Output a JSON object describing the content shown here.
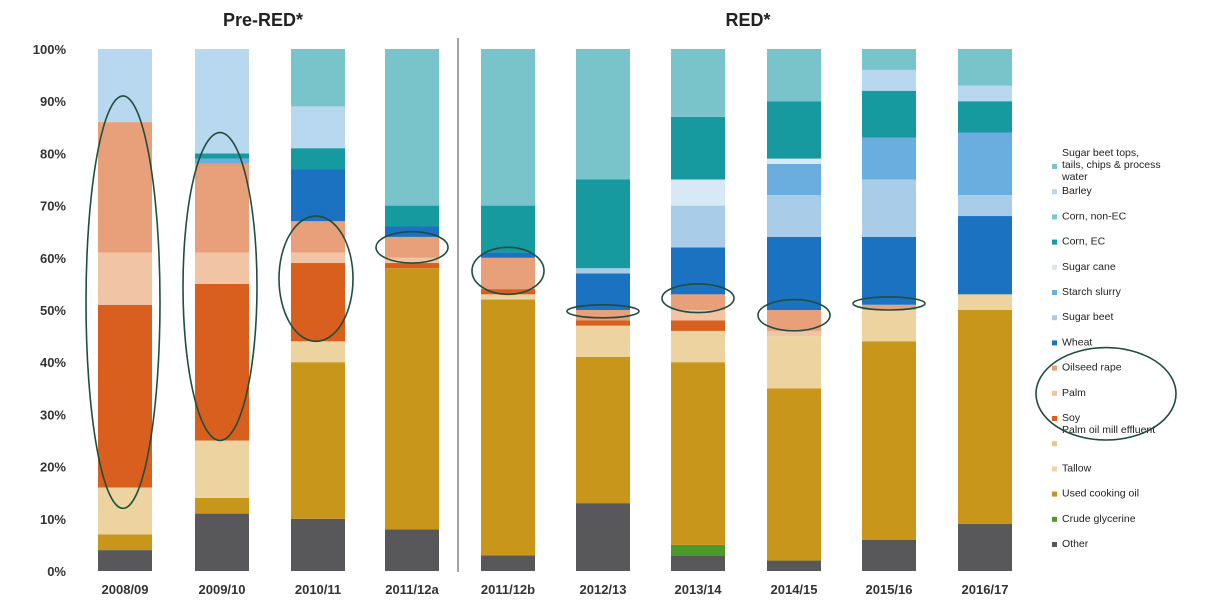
{
  "chart_data": {
    "type": "bar",
    "stacked": true,
    "group_labels": [
      "Pre-RED*",
      "RED*"
    ],
    "categories": [
      "2008/09",
      "2009/10",
      "2010/11",
      "2011/12a",
      "2011/12b",
      "2012/13",
      "2013/14",
      "2014/15",
      "2015/16",
      "2016/17"
    ],
    "ylim": [
      0,
      100
    ],
    "yticks": [
      "0%",
      "10%",
      "20%",
      "30%",
      "40%",
      "50%",
      "60%",
      "70%",
      "80%",
      "90%",
      "100%"
    ],
    "grid": false,
    "legend_position": "right",
    "series": [
      {
        "name": "Other",
        "color": "#58585a",
        "values": [
          4,
          11,
          10,
          8,
          3,
          13,
          3,
          2,
          6,
          9
        ]
      },
      {
        "name": "Crude glycerine",
        "color": "#4c9a2a",
        "values": [
          0,
          0,
          0,
          0,
          0,
          0,
          2,
          0,
          0,
          0
        ]
      },
      {
        "name": "Used cooking oil",
        "color": "#c8961a",
        "values": [
          3,
          3,
          30,
          50,
          49,
          28,
          35,
          33,
          38,
          41
        ]
      },
      {
        "name": "Tallow",
        "color": "#ecd3a0",
        "values": [
          9,
          11,
          4,
          0,
          1,
          6,
          6,
          10,
          6,
          3
        ]
      },
      {
        "name": "Palm oil mill effluent",
        "color": "#e8c48e",
        "values": [
          0,
          0,
          0,
          0,
          0,
          0,
          0,
          0,
          0,
          0
        ]
      },
      {
        "name": "Soy",
        "color": "#d95f1e",
        "values": [
          35,
          30,
          15,
          1,
          1,
          1,
          2,
          0,
          0,
          0
        ]
      },
      {
        "name": "Palm",
        "color": "#f1c4a6",
        "values": [
          10,
          6,
          2,
          1,
          0,
          0,
          2,
          1,
          0,
          0
        ]
      },
      {
        "name": "Oilseed rape",
        "color": "#e8a07a",
        "values": [
          25,
          17,
          6,
          4,
          6,
          2,
          3,
          4,
          1,
          0
        ]
      },
      {
        "name": "Wheat",
        "color": "#1a72c0",
        "values": [
          0,
          0,
          10,
          2,
          1,
          7,
          9,
          14,
          13,
          15
        ]
      },
      {
        "name": "Sugar beet",
        "color": "#a9cde8",
        "values": [
          0,
          0,
          0,
          0,
          0,
          1,
          8,
          8,
          11,
          4
        ]
      },
      {
        "name": "Starch slurry",
        "color": "#6aaedf",
        "values": [
          0,
          1,
          0,
          0,
          0,
          0,
          0,
          6,
          8,
          12
        ]
      },
      {
        "name": "Sugar cane",
        "color": "#d6e9f5",
        "values": [
          0,
          0,
          0,
          0,
          0,
          0,
          5,
          1,
          0,
          0
        ]
      },
      {
        "name": "Corn, EC",
        "color": "#16999f",
        "values": [
          0,
          1,
          4,
          4,
          9,
          17,
          12,
          11,
          9,
          6
        ]
      },
      {
        "name": "Corn, non-EC",
        "color": "#7ac7cc",
        "values": [
          0,
          0,
          0,
          0,
          0,
          0,
          0,
          0,
          0,
          0
        ]
      },
      {
        "name": "Barley",
        "color": "#b8d8ef",
        "values": [
          14,
          20,
          8,
          0,
          0,
          0,
          0,
          0,
          4,
          3
        ]
      },
      {
        "name": "Sugar beet tops, tails, chips & process water",
        "color": "#79c3ca",
        "values": [
          0,
          0,
          11,
          30,
          30,
          25,
          13,
          10,
          4,
          7
        ]
      }
    ],
    "legend_order": [
      "Sugar beet tops, tails, chips & process water",
      "Barley",
      "Corn, non-EC",
      "Corn, EC",
      "Sugar cane",
      "Starch slurry",
      "Sugar beet",
      "Wheat",
      "Oilseed rape",
      "Palm",
      "Soy",
      "Palm oil mill effluent",
      "Tallow",
      "Used cooking oil",
      "Crude glycerine",
      "Other"
    ],
    "annotations": [
      {
        "type": "ellipse",
        "category": "2008/09",
        "y_low": 12,
        "y_high": 91
      },
      {
        "type": "ellipse",
        "category": "2009/10",
        "y_low": 25,
        "y_high": 84
      },
      {
        "type": "ellipse",
        "category": "2010/11",
        "y_low": 44,
        "y_high": 68
      },
      {
        "type": "ellipse",
        "category": "2011/12a",
        "y_low": 59,
        "y_high": 65
      },
      {
        "type": "ellipse",
        "category": "2011/12b",
        "y_low": 53,
        "y_high": 62
      },
      {
        "type": "ellipse",
        "category": "2012/13",
        "y_low": 48.5,
        "y_high": 51
      },
      {
        "type": "ellipse",
        "category": "2013/14",
        "y_low": 49.5,
        "y_high": 55
      },
      {
        "type": "ellipse",
        "category": "2014/15",
        "y_low": 46,
        "y_high": 52
      },
      {
        "type": "ellipse",
        "category": "2015/16",
        "y_low": 50,
        "y_high": 52.5
      },
      {
        "type": "ellipse",
        "target": "legend",
        "items": [
          "Oilseed rape",
          "Palm",
          "Soy"
        ]
      }
    ]
  }
}
